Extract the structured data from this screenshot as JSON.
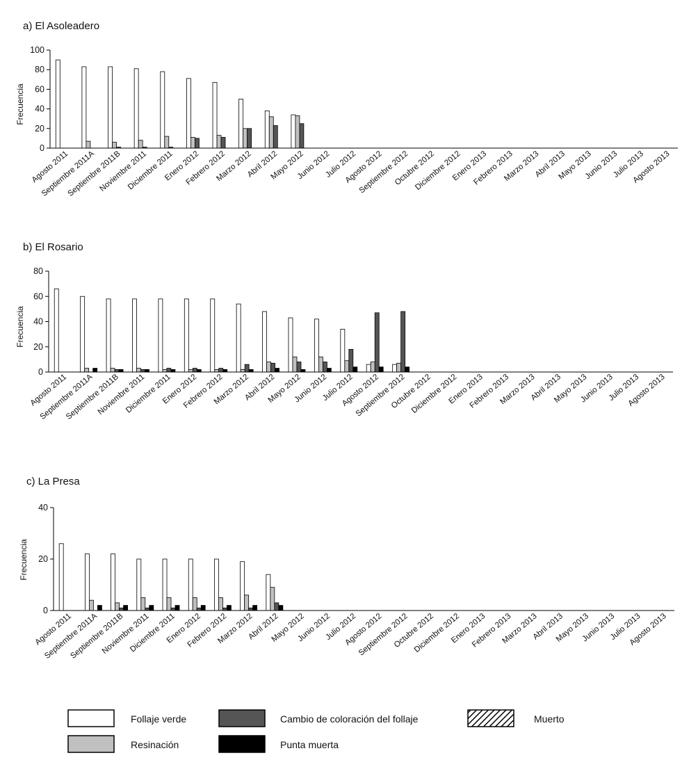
{
  "legend": [
    {
      "key": "follaje_verde",
      "label": "Follaje verde",
      "fill": "#ffffff"
    },
    {
      "key": "resinacion",
      "label": "Resinación",
      "fill": "#c0c0c0"
    },
    {
      "key": "cambio",
      "label": "Cambio de coloración del follaje",
      "fill": "#555555"
    },
    {
      "key": "punta_muerta",
      "label": "Punta muerta",
      "fill": "#000000"
    },
    {
      "key": "muerto",
      "label": "Muerto",
      "fill": "hatch"
    }
  ],
  "chart_data": [
    {
      "type": "bar",
      "title": "a) El Asoleadero",
      "ylabel": "Frecuencia",
      "ylim": [
        0,
        100
      ],
      "yticks": [
        0,
        20,
        40,
        60,
        80,
        100
      ],
      "categories": [
        "Agosto 2011",
        "Septiembre 2011A",
        "Septiembre 2011B",
        "Noviembre 2011",
        "Diciembre 2011",
        "Enero 2012",
        "Febrero 2012",
        "Marzo 2012",
        "Abril 2012",
        "Mayo 2012",
        "Junio 2012",
        "Julio 2012",
        "Agosto 2012",
        "Septiembre 2012",
        "Octubre 2012",
        "Diciembre 2012",
        "Enero 2013",
        "Febrero 2013",
        "Marzo 2013",
        "Abril 2013",
        "Mayo 2013",
        "Junio 2013",
        "Julio 2013",
        "Agosto 2013"
      ],
      "series": [
        {
          "name": "Follaje verde",
          "values": [
            90,
            83,
            83,
            81,
            78,
            71,
            67,
            50,
            38,
            34,
            0,
            0,
            0,
            0,
            0,
            0,
            0,
            0,
            0,
            0,
            0,
            0,
            0,
            0
          ]
        },
        {
          "name": "Resinación",
          "values": [
            0,
            7,
            6,
            8,
            12,
            11,
            13,
            20,
            32,
            33,
            0,
            0,
            0,
            0,
            0,
            0,
            0,
            0,
            0,
            0,
            0,
            0,
            0,
            0
          ]
        },
        {
          "name": "Cambio de coloración del follaje",
          "values": [
            0,
            0,
            1,
            1,
            1,
            10,
            11,
            20,
            23,
            25,
            0,
            0,
            0,
            0,
            0,
            0,
            0,
            0,
            0,
            0,
            0,
            0,
            0,
            0
          ]
        },
        {
          "name": "Punta muerta",
          "values": [
            0,
            0,
            0,
            0,
            0,
            0,
            0,
            0,
            0,
            0,
            0,
            0,
            0,
            0,
            0,
            0,
            0,
            0,
            0,
            0,
            0,
            0,
            0,
            0
          ]
        },
        {
          "name": "Muerto",
          "values": [
            0,
            0,
            0,
            0,
            0,
            0,
            0,
            0,
            0,
            0,
            0,
            0,
            0,
            0,
            0,
            0,
            0,
            0,
            0,
            0,
            0,
            0,
            0,
            0
          ]
        }
      ]
    },
    {
      "type": "bar",
      "title": "b) El Rosario",
      "ylabel": "Frecuencia",
      "ylim": [
        0,
        80
      ],
      "yticks": [
        0,
        20,
        40,
        60,
        80
      ],
      "categories": [
        "Agosto 2011",
        "Septiembre 2011A",
        "Septiembre 2011B",
        "Noviembre 2011",
        "Diciembre 2011",
        "Enero 2012",
        "Febrero 2012",
        "Marzo 2012",
        "Abril 2012",
        "Mayo 2012",
        "Junio 2012",
        "Julio 2012",
        "Agosto 2012",
        "Septiembre 2012",
        "Octubre 2012",
        "Diciembre 2012",
        "Enero 2013",
        "Febrero 2013",
        "Marzo 2013",
        "Abril 2013",
        "Mayo 2013",
        "Junio 2013",
        "Julio 2013",
        "Agosto 2013"
      ],
      "series": [
        {
          "name": "Follaje verde",
          "values": [
            66,
            60,
            58,
            58,
            58,
            58,
            58,
            54,
            48,
            43,
            42,
            34,
            6,
            6,
            0,
            0,
            0,
            0,
            0,
            0,
            0,
            0,
            0,
            0
          ]
        },
        {
          "name": "Resinación",
          "values": [
            0,
            3,
            3,
            3,
            2,
            2,
            2,
            2,
            8,
            12,
            12,
            9,
            8,
            7,
            0,
            0,
            0,
            0,
            0,
            0,
            0,
            0,
            0,
            0
          ]
        },
        {
          "name": "Cambio de coloración del follaje",
          "values": [
            0,
            0,
            2,
            2,
            3,
            3,
            3,
            6,
            7,
            8,
            8,
            18,
            47,
            48,
            0,
            0,
            0,
            0,
            0,
            0,
            0,
            0,
            0,
            0
          ]
        },
        {
          "name": "Punta muerta",
          "values": [
            0,
            3,
            2,
            2,
            2,
            2,
            2,
            2,
            3,
            2,
            3,
            4,
            4,
            4,
            0,
            0,
            0,
            0,
            0,
            0,
            0,
            0,
            0,
            0
          ]
        },
        {
          "name": "Muerto",
          "values": [
            0,
            0,
            0,
            0,
            0,
            0,
            0,
            0,
            0,
            0,
            0,
            0,
            0,
            0,
            0,
            0,
            0,
            0,
            0,
            0,
            0,
            0,
            0,
            0
          ]
        }
      ]
    },
    {
      "type": "bar",
      "title": "c) La Presa",
      "ylabel": "Frecuencia",
      "ylim": [
        0,
        40
      ],
      "yticks": [
        0,
        20,
        40
      ],
      "categories": [
        "Agosto 2011",
        "Septiembre 2011A",
        "Septiembre 2011B",
        "Noviembre 2011",
        "Diciembre 2011",
        "Enero 2012",
        "Febrero 2012",
        "Marzo 2012",
        "Abril 2012",
        "Mayo 2012",
        "Junio 2012",
        "Julio 2012",
        "Agosto 2012",
        "Septiembre 2012",
        "Octubre 2012",
        "Diciembre 2012",
        "Enero 2013",
        "Febrero 2013",
        "Marzo 2013",
        "Abril 2013",
        "Mayo 2013",
        "Junio 2013",
        "Julio 2013",
        "Agosto 2013"
      ],
      "series": [
        {
          "name": "Follaje verde",
          "values": [
            26,
            22,
            22,
            20,
            20,
            20,
            20,
            19,
            14,
            0,
            0,
            0,
            0,
            0,
            0,
            0,
            0,
            0,
            0,
            0,
            0,
            0,
            0,
            0
          ]
        },
        {
          "name": "Resinación",
          "values": [
            0,
            4,
            3,
            5,
            5,
            5,
            5,
            6,
            9,
            0,
            0,
            0,
            0,
            0,
            0,
            0,
            0,
            0,
            0,
            0,
            0,
            0,
            0,
            0
          ]
        },
        {
          "name": "Cambio de coloración del follaje",
          "values": [
            0,
            0,
            1,
            1,
            1,
            1,
            1,
            1,
            3,
            0,
            0,
            0,
            0,
            0,
            0,
            0,
            0,
            0,
            0,
            0,
            0,
            0,
            0,
            0
          ]
        },
        {
          "name": "Punta muerta",
          "values": [
            0,
            2,
            2,
            2,
            2,
            2,
            2,
            2,
            2,
            0,
            0,
            0,
            0,
            0,
            0,
            0,
            0,
            0,
            0,
            0,
            0,
            0,
            0,
            0
          ]
        },
        {
          "name": "Muerto",
          "values": [
            0,
            0,
            0,
            0,
            0,
            0,
            0,
            0,
            0,
            0,
            0,
            0,
            0,
            0,
            0,
            0,
            0,
            0,
            0,
            0,
            0,
            0,
            0,
            0
          ]
        }
      ]
    }
  ]
}
